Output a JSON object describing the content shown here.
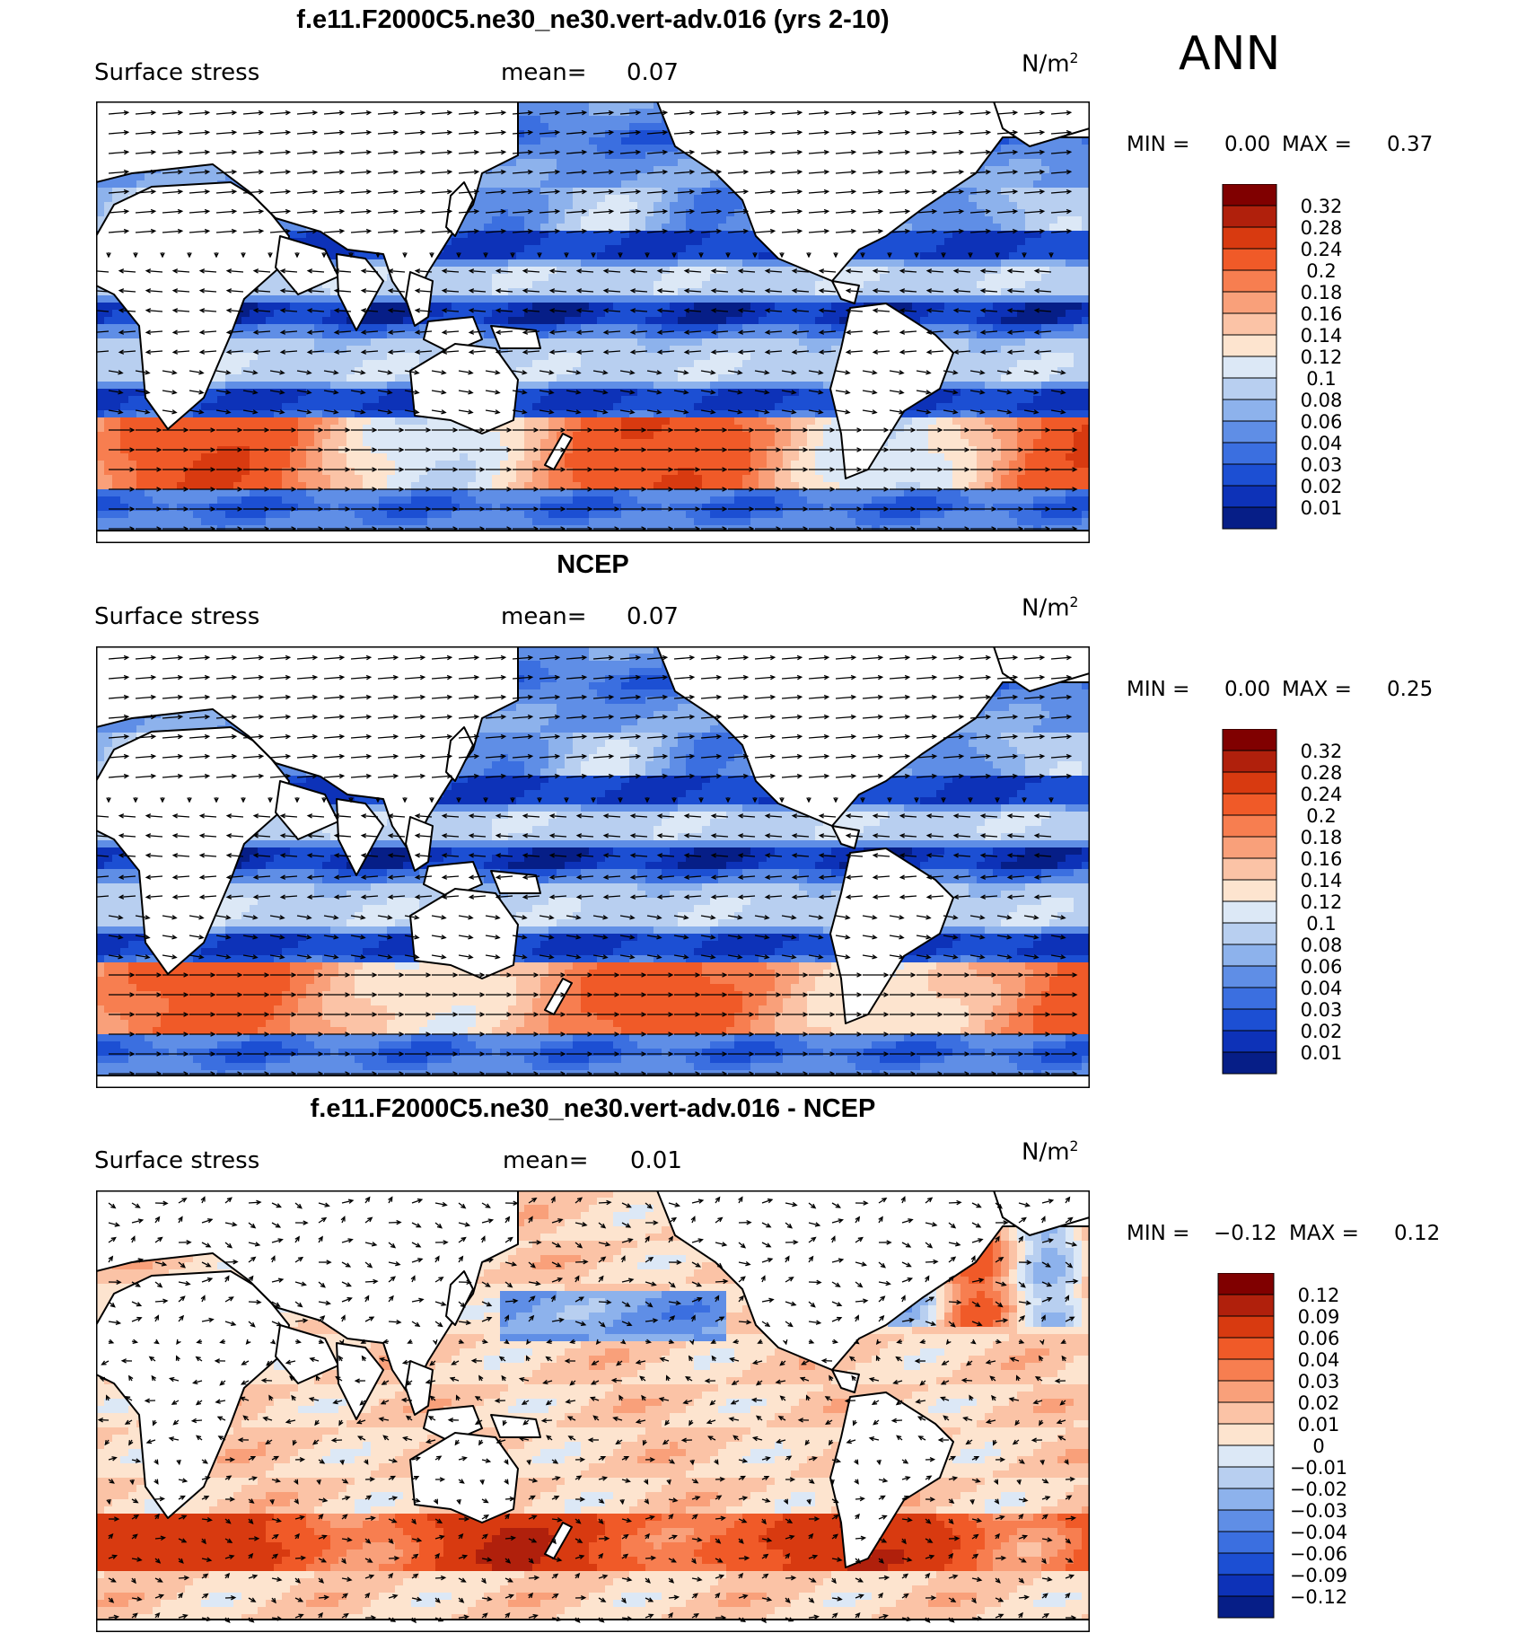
{
  "header": {
    "season": "ANN"
  },
  "panels": [
    {
      "title": "f.e11.F2000C5.ne30_ne30.vert-adv.016 (yrs 2-10)",
      "variable": "Surface stress",
      "mean_label": "mean=",
      "mean": "0.07",
      "units": "N/m",
      "units_exp": "2",
      "min_label": "MIN =",
      "min": "0.00",
      "max_label": "MAX =",
      "max": "0.37"
    },
    {
      "title": "NCEP",
      "variable": "Surface stress",
      "mean_label": "mean=",
      "mean": "0.07",
      "units": "N/m",
      "units_exp": "2",
      "min_label": "MIN =",
      "min": "0.00",
      "max_label": "MAX =",
      "max": "0.25"
    },
    {
      "title": "f.e11.F2000C5.ne30_ne30.vert-adv.016 - NCEP",
      "variable": "Surface stress",
      "mean_label": "mean=",
      "mean": "0.01",
      "units": "N/m",
      "units_exp": "2",
      "min_label": "MIN =",
      "min": "−0.12",
      "max_label": "MAX =",
      "max": "0.12"
    }
  ],
  "chart_data": [
    {
      "type": "heatmap",
      "title": "f.e11.F2000C5.ne30_ne30.vert-adv.016 (yrs 2-10)",
      "projection": "global lat-lon, centred on Pacific",
      "overlay": "wind stress vectors",
      "legend_placement": "right",
      "colorbar": {
        "labels": [
          "0.32",
          "0.28",
          "0.24",
          "0.2",
          "0.18",
          "0.16",
          "0.14",
          "0.12",
          "0.1",
          "0.08",
          "0.06",
          "0.04",
          "0.03",
          "0.02",
          "0.01"
        ],
        "colors": [
          "#800000",
          "#b0200c",
          "#d83a10",
          "#f05a28",
          "#f77e50",
          "#f9a07a",
          "#fbc3a6",
          "#fde4cf",
          "#dce8f6",
          "#b8cff0",
          "#8db2ec",
          "#5f8ee6",
          "#3b6fe0",
          "#1c4fd3",
          "#0d32b8",
          "#061e87"
        ]
      }
    },
    {
      "type": "heatmap",
      "title": "NCEP",
      "projection": "global lat-lon, centred on Pacific",
      "overlay": "wind stress vectors",
      "legend_placement": "right",
      "colorbar": {
        "labels": [
          "0.32",
          "0.28",
          "0.24",
          "0.2",
          "0.18",
          "0.16",
          "0.14",
          "0.12",
          "0.1",
          "0.08",
          "0.06",
          "0.04",
          "0.03",
          "0.02",
          "0.01"
        ],
        "colors": [
          "#800000",
          "#b0200c",
          "#d83a10",
          "#f05a28",
          "#f77e50",
          "#f9a07a",
          "#fbc3a6",
          "#fde4cf",
          "#dce8f6",
          "#b8cff0",
          "#8db2ec",
          "#5f8ee6",
          "#3b6fe0",
          "#1c4fd3",
          "#0d32b8",
          "#061e87"
        ]
      }
    },
    {
      "type": "heatmap",
      "title": "f.e11.F2000C5.ne30_ne30.vert-adv.016 - NCEP",
      "projection": "global lat-lon, centred on Pacific",
      "overlay": "wind stress difference vectors",
      "legend_placement": "right",
      "colorbar": {
        "labels": [
          "0.12",
          "0.09",
          "0.06",
          "0.04",
          "0.03",
          "0.02",
          "0.01",
          "0",
          "−0.01",
          "−0.02",
          "−0.03",
          "−0.04",
          "−0.06",
          "−0.09",
          "−0.12"
        ],
        "colors": [
          "#800000",
          "#b0200c",
          "#d83a10",
          "#f05a28",
          "#f77e50",
          "#f9a07a",
          "#fbc3a6",
          "#fde4cf",
          "#dce8f6",
          "#b8cff0",
          "#8db2ec",
          "#5f8ee6",
          "#3b6fe0",
          "#1c4fd3",
          "#0d32b8",
          "#061e87"
        ]
      }
    }
  ]
}
